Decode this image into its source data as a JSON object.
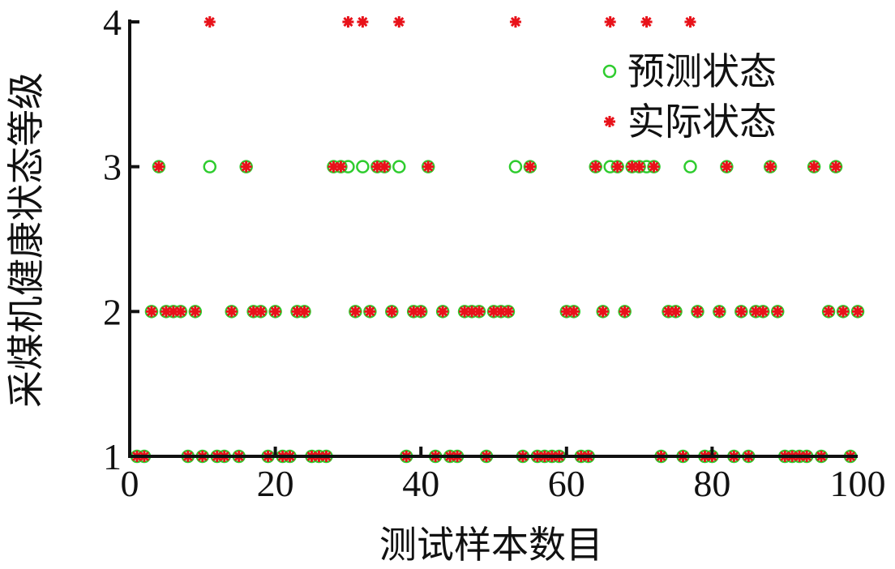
{
  "chart_data": {
    "type": "scatter",
    "xlabel": "测试样本数目",
    "ylabel": "采煤机健康状态等级",
    "xlim": [
      0,
      100
    ],
    "ylim": [
      1,
      4
    ],
    "x_ticks": [
      "0",
      "20",
      "40",
      "60",
      "80",
      "100"
    ],
    "y_ticks": [
      "1",
      "2",
      "3",
      "4"
    ],
    "grid": false,
    "legend": {
      "placement": "top-right"
    },
    "series": [
      {
        "name": "预测状态",
        "marker": "circle-open",
        "color": "#2ecc2e",
        "x": [
          1,
          2,
          3,
          4,
          5,
          6,
          7,
          8,
          9,
          10,
          11,
          12,
          13,
          14,
          15,
          16,
          17,
          18,
          19,
          20,
          21,
          22,
          23,
          24,
          25,
          26,
          27,
          28,
          29,
          30,
          31,
          32,
          33,
          34,
          35,
          36,
          37,
          38,
          39,
          40,
          41,
          42,
          43,
          44,
          45,
          46,
          47,
          48,
          49,
          50,
          51,
          52,
          53,
          54,
          55,
          56,
          57,
          58,
          59,
          60,
          61,
          62,
          63,
          64,
          65,
          66,
          67,
          68,
          69,
          70,
          71,
          72,
          73,
          74,
          75,
          76,
          77,
          78,
          79,
          80,
          81,
          82,
          83,
          84,
          85,
          86,
          87,
          88,
          89,
          90,
          91,
          92,
          93,
          94,
          95,
          96,
          97,
          98,
          99,
          100
        ],
        "y": [
          1,
          1,
          2,
          3,
          2,
          2,
          2,
          1,
          2,
          1,
          3,
          1,
          1,
          2,
          1,
          3,
          2,
          2,
          1,
          2,
          1,
          1,
          2,
          2,
          1,
          1,
          1,
          3,
          3,
          3,
          2,
          3,
          2,
          3,
          3,
          2,
          3,
          1,
          2,
          2,
          3,
          1,
          2,
          1,
          1,
          2,
          2,
          2,
          1,
          2,
          2,
          2,
          3,
          1,
          3,
          1,
          1,
          1,
          1,
          2,
          2,
          1,
          1,
          3,
          2,
          3,
          3,
          2,
          3,
          3,
          3,
          3,
          1,
          2,
          2,
          1,
          3,
          2,
          1,
          1,
          2,
          3,
          1,
          2,
          1,
          2,
          2,
          3,
          2,
          1,
          1,
          1,
          1,
          3,
          1,
          2,
          3,
          2,
          1,
          2
        ]
      },
      {
        "name": "实际状态",
        "marker": "star",
        "color": "#e8121a",
        "x": [
          1,
          2,
          3,
          4,
          5,
          6,
          7,
          8,
          9,
          10,
          11,
          12,
          13,
          14,
          15,
          16,
          17,
          18,
          19,
          20,
          21,
          22,
          23,
          24,
          25,
          26,
          27,
          28,
          29,
          30,
          31,
          32,
          33,
          34,
          35,
          36,
          37,
          38,
          39,
          40,
          41,
          42,
          43,
          44,
          45,
          46,
          47,
          48,
          49,
          50,
          51,
          52,
          53,
          54,
          55,
          56,
          57,
          58,
          59,
          60,
          61,
          62,
          63,
          64,
          65,
          66,
          67,
          68,
          69,
          70,
          71,
          72,
          73,
          74,
          75,
          76,
          77,
          78,
          79,
          80,
          81,
          82,
          83,
          84,
          85,
          86,
          87,
          88,
          89,
          90,
          91,
          92,
          93,
          94,
          95,
          96,
          97,
          98,
          99,
          100
        ],
        "y": [
          1,
          1,
          2,
          3,
          2,
          2,
          2,
          1,
          2,
          1,
          4,
          1,
          1,
          2,
          1,
          3,
          2,
          2,
          1,
          2,
          1,
          1,
          2,
          2,
          1,
          1,
          1,
          3,
          3,
          4,
          2,
          4,
          2,
          3,
          3,
          2,
          4,
          1,
          2,
          2,
          3,
          1,
          2,
          1,
          1,
          2,
          2,
          2,
          1,
          2,
          2,
          2,
          4,
          1,
          3,
          1,
          1,
          1,
          1,
          2,
          2,
          1,
          1,
          3,
          2,
          4,
          3,
          2,
          3,
          3,
          4,
          3,
          1,
          2,
          2,
          1,
          4,
          2,
          1,
          1,
          2,
          3,
          1,
          2,
          1,
          2,
          2,
          3,
          2,
          1,
          1,
          1,
          1,
          3,
          1,
          2,
          3,
          2,
          1,
          2
        ]
      }
    ]
  }
}
